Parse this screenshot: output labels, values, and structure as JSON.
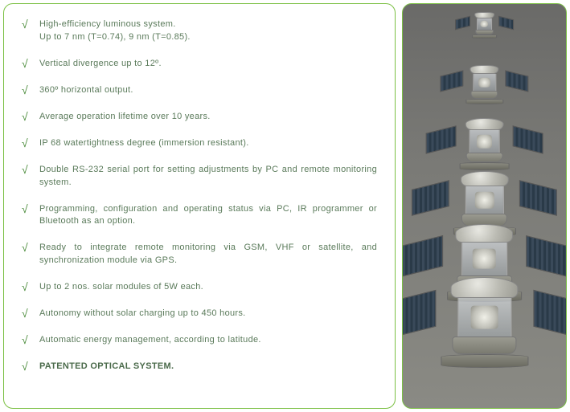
{
  "features": [
    {
      "text": "High-efficiency luminous system.\nUp to 7 nm (T=0.74), 9 nm (T=0.85).",
      "bold": false
    },
    {
      "text": "Vertical divergence up to 12º.",
      "bold": false
    },
    {
      "text": "360º horizontal output.",
      "bold": false
    },
    {
      "text": "Average operation lifetime over 10 years.",
      "bold": false
    },
    {
      "text": "IP 68 watertightness degree (immersion resistant).",
      "bold": false
    },
    {
      "text": "Double RS-232 serial port for setting adjustments by PC and remote monitoring system.",
      "bold": false
    },
    {
      "text": "Programming, configuration and operating status via PC, IR programmer or Bluetooth as an option.",
      "bold": false
    },
    {
      "text": "Ready to integrate remote monitoring via GSM, VHF or satellite, and synchronization module via GPS.",
      "bold": false
    },
    {
      "text": "Up to 2 nos. solar modules of 5W each.",
      "bold": false
    },
    {
      "text": "Autonomy without solar charging up to 450 hours.",
      "bold": false
    },
    {
      "text": "Automatic energy management, according to latitude.",
      "bold": false
    },
    {
      "text": "PATENTED OPTICAL SYSTEM.",
      "bold": true
    }
  ],
  "colors": {
    "border": "#7bc043",
    "text": "#5a7a5a",
    "check": "#4a8b3a"
  },
  "image": {
    "description": "Row of marine lanterns with attached solar panels on factory floor",
    "lantern_count": 6
  }
}
